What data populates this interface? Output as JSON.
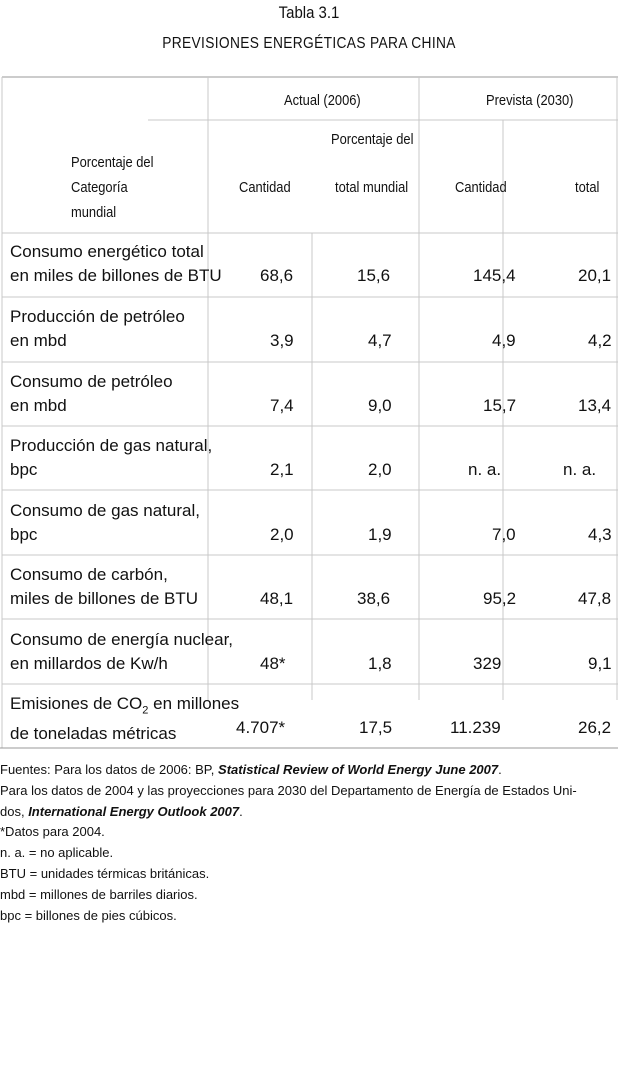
{
  "table_number": "Tabla 3.1",
  "table_title": "PREVISIONES ENERGÉTICAS PARA CHINA",
  "header": {
    "actual_group": "Actual (2006)",
    "prevista_group": "Prevista (2030)",
    "pct_top": "Porcentaje del",
    "categoria_lines": [
      "Porcentaje del",
      "Categoría",
      "mundial"
    ],
    "cantidad_1": "Cantidad",
    "total_mundial": "total mundial",
    "cantidad_2": "Cantidad",
    "total": "total"
  },
  "rows": [
    {
      "line1": "Consumo energético total",
      "line2": "en miles de billones de BTU",
      "a_cant": "68,6",
      "a_pct": "15,6",
      "p_cant": "145,4",
      "p_pct": "20,1"
    },
    {
      "line1": "Producción de petróleo",
      "line2": "en mbd",
      "a_cant": "3,9",
      "a_pct": "4,7",
      "p_cant": "4,9",
      "p_pct": "4,2"
    },
    {
      "line1": "Consumo de petróleo",
      "line2": "en mbd",
      "a_cant": "7,4",
      "a_pct": "9,0",
      "p_cant": "15,7",
      "p_pct": "13,4"
    },
    {
      "line1": "Producción de gas natural,",
      "line2": "bpc",
      "a_cant": "2,1",
      "a_pct": "2,0",
      "p_cant": "n. a.",
      "p_pct": "n. a."
    },
    {
      "line1": "Consumo de gas natural,",
      "line2": "bpc",
      "a_cant": "2,0",
      "a_pct": "1,9",
      "p_cant": "7,0",
      "p_pct": "4,3"
    },
    {
      "line1": "Consumo de carbón,",
      "line2": "miles de billones de BTU",
      "a_cant": "48,1",
      "a_pct": "38,6",
      "p_cant": "95,2",
      "p_pct": "47,8"
    },
    {
      "line1": "Consumo de energía nuclear,",
      "line2": "en millardos de Kw/h",
      "a_cant": "48*",
      "a_pct": "1,8",
      "p_cant": "329",
      "p_pct": "9,1"
    },
    {
      "line1_pre": "Emisiones de CO",
      "line1_sub": "2",
      "line1_post": " en millones",
      "line2": "de toneladas métricas",
      "a_cant": "4.707*",
      "a_pct": "17,5",
      "p_cant": "11.239",
      "p_pct": "26,2"
    }
  ],
  "notes": {
    "sources_pre": "Fuentes: Para los datos de 2006: BP, ",
    "sources_ital": "Statistical Review of World Energy June 2007",
    "sources_post": ".",
    "line2": "Para los datos de 2004 y las proyecciones para 2030 del Departamento de Energía de Estados Uni-",
    "line3_pre": "dos, ",
    "line3_ital": "International Energy Outlook 2007",
    "line3_post": ".",
    "n1": "*Datos para 2004.",
    "n2": "n. a. = no aplicable.",
    "n3": "BTU = unidades térmicas británicas.",
    "n4": "mbd = millones de barriles diarios.",
    "n5": "bpc = billones de pies cúbicos."
  }
}
